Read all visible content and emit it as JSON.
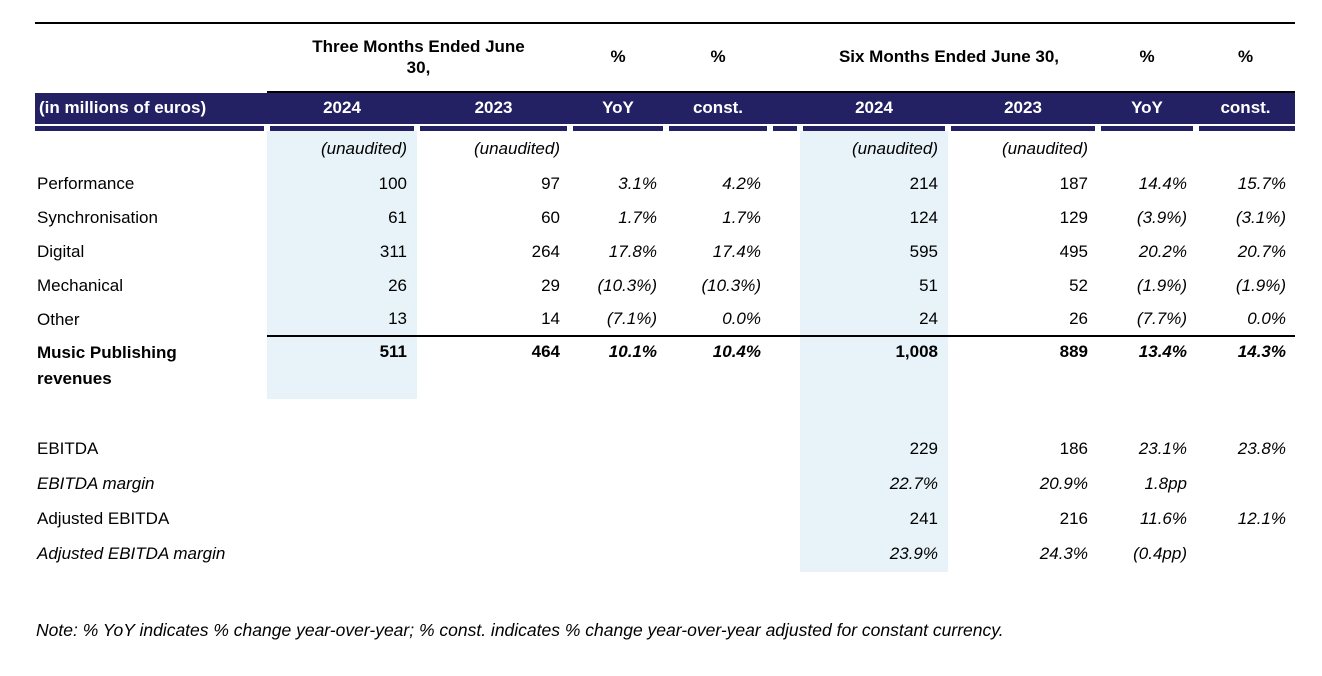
{
  "table": {
    "group_header": {
      "three_months": "Three Months Ended June 30,",
      "six_months": "Six Months Ended June 30,",
      "pct": "%"
    },
    "band": {
      "unit_label": "(in millions of euros)",
      "col_2024": "2024",
      "col_2023": "2023",
      "col_yoy": "YoY",
      "col_const": "const."
    },
    "unaudited": "(unaudited)",
    "rows": [
      {
        "label": "Performance",
        "values": [
          "100",
          "97",
          "3.1%",
          "4.2%",
          "214",
          "187",
          "14.4%",
          "15.7%"
        ]
      },
      {
        "label": "Synchronisation",
        "values": [
          "61",
          "60",
          "1.7%",
          "1.7%",
          "124",
          "129",
          "(3.9%)",
          "(3.1%)"
        ]
      },
      {
        "label": "Digital",
        "values": [
          "311",
          "264",
          "17.8%",
          "17.4%",
          "595",
          "495",
          "20.2%",
          "20.7%"
        ]
      },
      {
        "label": "Mechanical",
        "values": [
          "26",
          "29",
          "(10.3%)",
          "(10.3%)",
          "51",
          "52",
          "(1.9%)",
          "(1.9%)"
        ]
      },
      {
        "label": "Other",
        "values": [
          "13",
          "14",
          "(7.1%)",
          "0.0%",
          "24",
          "26",
          "(7.7%)",
          "0.0%"
        ]
      },
      {
        "label": "Music Publishing revenues",
        "values": [
          "511",
          "464",
          "10.1%",
          "10.4%",
          "1,008",
          "889",
          "13.4%",
          "14.3%"
        ]
      },
      {
        "label": "EBITDA",
        "values": [
          "",
          "",
          "",
          "",
          "229",
          "186",
          "23.1%",
          "23.8%"
        ]
      },
      {
        "label": "EBITDA margin",
        "values": [
          "",
          "",
          "",
          "",
          "22.7%",
          "20.9%",
          "1.8pp",
          ""
        ]
      },
      {
        "label": "Adjusted EBITDA",
        "values": [
          "",
          "",
          "",
          "",
          "241",
          "216",
          "11.6%",
          "12.1%"
        ]
      },
      {
        "label": "Adjusted EBITDA margin",
        "values": [
          "",
          "",
          "",
          "",
          "23.9%",
          "24.3%",
          "(0.4pp)",
          ""
        ]
      }
    ]
  },
  "note": "Note: % YoY indicates % change year-over-year; % const. indicates % change year-over-year adjusted for constant currency.",
  "colors": {
    "header_navy": "#232163",
    "highlight_blue": "#E7F3F9",
    "rule_black": "#000000"
  }
}
